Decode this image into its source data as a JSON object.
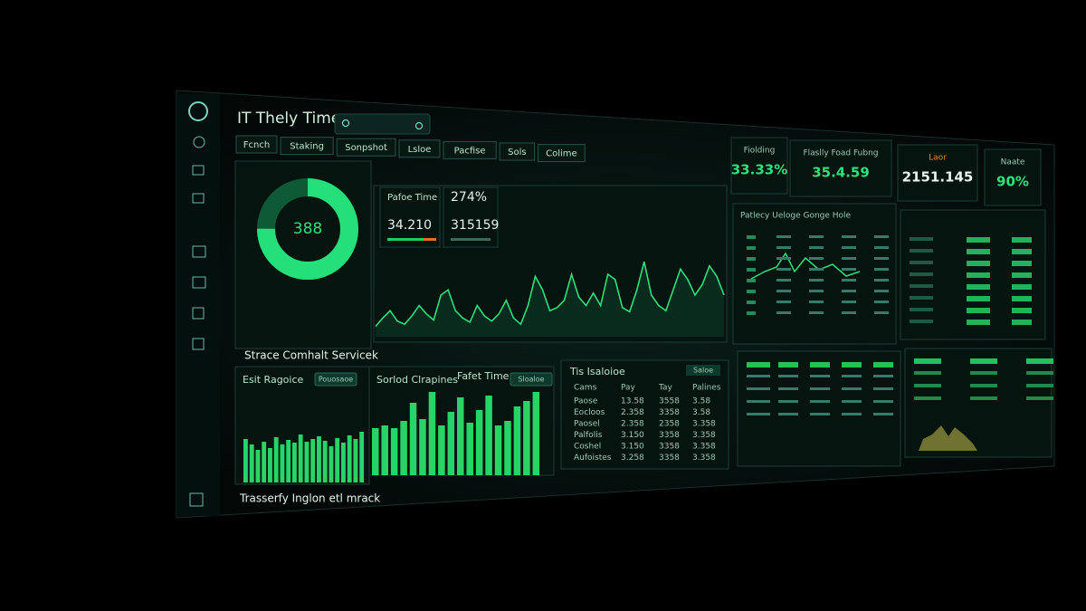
{
  "header": {
    "title": "IT Thely Time",
    "tabs": [
      "Fcnch",
      "Staking",
      "Sonpshot",
      "Lsloe",
      "Pacfise",
      "Sols",
      "Colime"
    ]
  },
  "donut": {
    "label": "388",
    "percent": 75
  },
  "stats": [
    {
      "title": "Pafoe Time",
      "value": "34.210"
    },
    {
      "title": "274%",
      "value": "315159"
    }
  ],
  "line_chart": {
    "values": [
      10,
      18,
      25,
      15,
      12,
      20,
      30,
      22,
      16,
      40,
      45,
      25,
      18,
      14,
      30,
      20,
      15,
      22,
      35,
      18,
      12,
      30,
      58,
      45,
      25,
      28,
      35,
      60,
      38,
      30,
      42,
      30,
      60,
      55,
      28,
      24,
      45,
      72,
      40,
      30,
      25,
      45,
      65,
      55,
      40,
      50,
      68,
      58,
      40
    ]
  },
  "section_title": "Strace Comhalt Servicek",
  "bar_panels": [
    {
      "title": "Esit Ragoice",
      "badge": "Pouosaoe",
      "values": [
        48,
        42,
        36,
        45,
        38,
        50,
        42,
        47,
        44,
        53,
        45,
        48,
        51,
        46,
        40,
        49,
        44,
        52,
        48,
        56
      ]
    },
    {
      "title": "Sorlod Clrapines",
      "subtitle": "Fafet Time",
      "badge": "Sloaloe",
      "values": [
        52,
        55,
        52,
        60,
        80,
        62,
        92,
        55,
        70,
        86,
        58,
        72,
        88,
        55,
        60,
        76,
        82,
        92
      ]
    }
  ],
  "table": {
    "title": "Tis Isaloioe",
    "badge": "Saloe",
    "columns": [
      "Cams",
      "Pay",
      "Tay",
      "Palines"
    ],
    "rows": [
      [
        "Paose",
        "13.58",
        "3558",
        "3.58"
      ],
      [
        "Eocloos",
        "2.358",
        "3358",
        "3.58"
      ],
      [
        "Paosel",
        "2.358",
        "2358",
        "3.358"
      ],
      [
        "Palfolis",
        "3.150",
        "3358",
        "3.358"
      ],
      [
        "Coshel",
        "3.150",
        "3358",
        "3.358"
      ],
      [
        "Aufoistes",
        "3.258",
        "3358",
        "3.358"
      ]
    ]
  },
  "kpis": [
    {
      "label": "Fiolding",
      "value": "33.33%"
    },
    {
      "label": "Flaslly Foad Fubng",
      "value": "35.4.59"
    },
    {
      "label": "Laor",
      "value": "2151.145"
    },
    {
      "label": "Naate",
      "value": "90%"
    }
  ],
  "right_chart": {
    "title": "Patlecy Ueloge Gonge Hole"
  },
  "footer": "Trasserfy Inglon etl mrack"
}
